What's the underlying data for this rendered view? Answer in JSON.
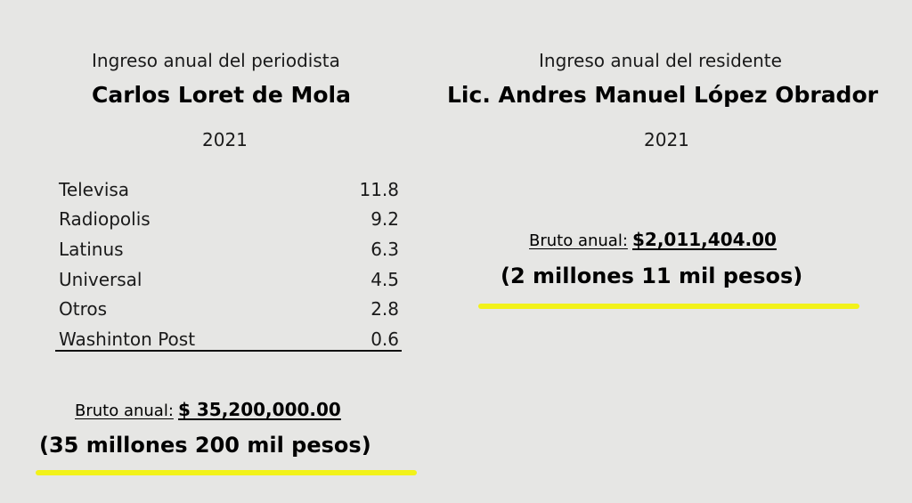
{
  "left": {
    "subtitle": "Ingreso anual del periodista",
    "name": "Carlos Loret de Mola",
    "year": "2021",
    "income_rows": [
      {
        "source": "Televisa",
        "value": "11.8"
      },
      {
        "source": "Radiopolis",
        "value": "9.2"
      },
      {
        "source": "Latinus",
        "value": "6.3"
      },
      {
        "source": "Universal",
        "value": "4.5"
      },
      {
        "source": "Otros",
        "value": "2.8"
      },
      {
        "source": "Washinton Post",
        "value": "0.6"
      }
    ],
    "bruto_label": "Bruto anual:",
    "bruto_amount": "$ 35,200,000.00",
    "amount_words": "(35 millones 200 mil pesos)"
  },
  "right": {
    "subtitle": "Ingreso anual del residente",
    "name": "Lic. Andres Manuel López Obrador",
    "year": "2021",
    "bruto_label": "Bruto anual:",
    "bruto_amount": "$2,011,404.00",
    "amount_words": "(2 millones 11 mil pesos)"
  },
  "colors": {
    "background": "#e6e6e4",
    "highlight": "#f2f21a",
    "text": "#111111"
  }
}
